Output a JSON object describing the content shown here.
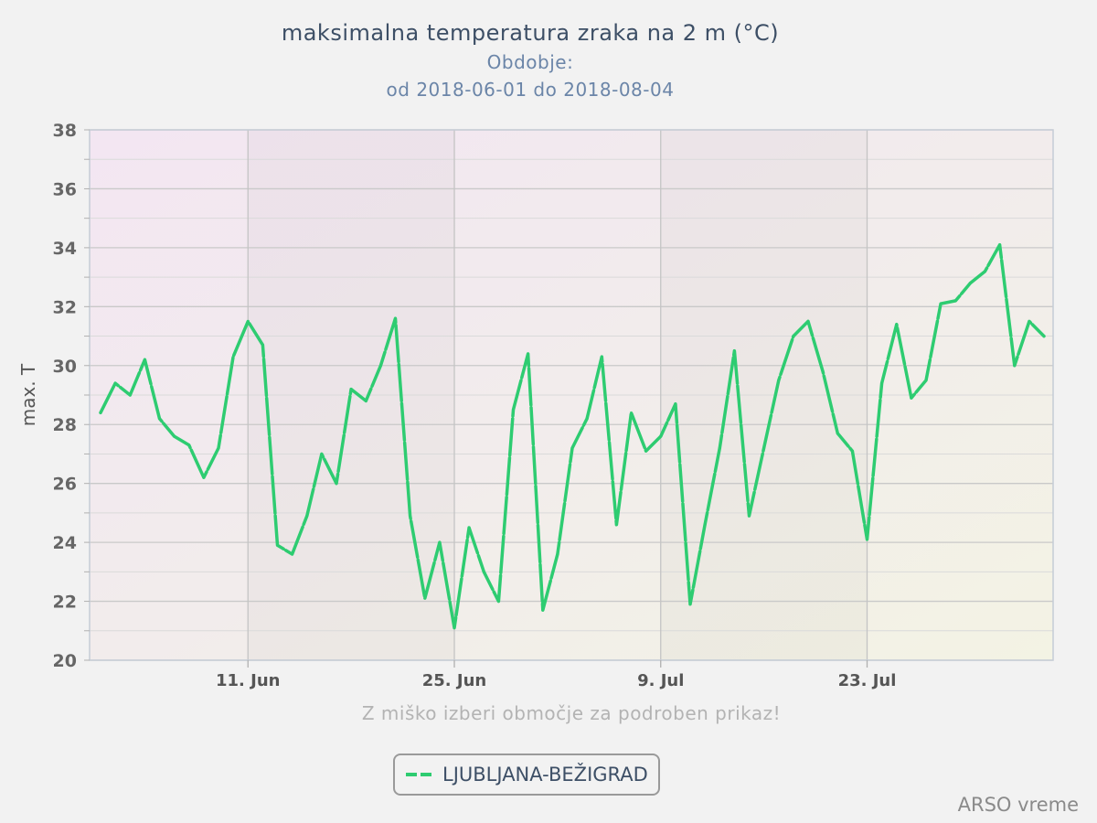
{
  "header": {
    "title": "maksimalna temperatura zraka na 2 m (°C)",
    "period_label": "Obdobje:",
    "period_range": "od 2018-06-01 do 2018-08-04"
  },
  "hint": "Z miško izberi območje za podroben prikaz!",
  "legend": {
    "label": "LJUBLJANA-BEŽIGRAD"
  },
  "credit": "ARSO vreme",
  "colors": {
    "series": "#2ecc71",
    "title": "#3d4f66",
    "subtitle": "#6b85a8"
  },
  "chart_data": {
    "type": "line",
    "title": "maksimalna temperatura zraka na 2 m (°C)",
    "ylabel": "max. T",
    "xlabel": "",
    "ylim": [
      20,
      38
    ],
    "yticks": [
      20,
      22,
      24,
      26,
      28,
      30,
      32,
      34,
      36,
      38
    ],
    "xlim": [
      "2018-06-01",
      "2018-08-04"
    ],
    "xticks": [
      {
        "date": "2018-06-11",
        "label": "11. Jun"
      },
      {
        "date": "2018-06-25",
        "label": "25. Jun"
      },
      {
        "date": "2018-07-09",
        "label": "9. Jul"
      },
      {
        "date": "2018-07-23",
        "label": "23. Jul"
      }
    ],
    "grid": true,
    "legend_position": "bottom",
    "series": [
      {
        "name": "LJUBLJANA-BEŽIGRAD",
        "color": "#2ecc71",
        "dashed": true,
        "points": [
          [
            "2018-06-01",
            28.4
          ],
          [
            "2018-06-02",
            29.4
          ],
          [
            "2018-06-03",
            29.0
          ],
          [
            "2018-06-04",
            30.2
          ],
          [
            "2018-06-05",
            28.2
          ],
          [
            "2018-06-06",
            27.6
          ],
          [
            "2018-06-07",
            27.3
          ],
          [
            "2018-06-08",
            26.2
          ],
          [
            "2018-06-09",
            27.2
          ],
          [
            "2018-06-10",
            30.3
          ],
          [
            "2018-06-11",
            31.5
          ],
          [
            "2018-06-12",
            30.7
          ],
          [
            "2018-06-13",
            23.9
          ],
          [
            "2018-06-14",
            23.6
          ],
          [
            "2018-06-15",
            24.9
          ],
          [
            "2018-06-16",
            27.0
          ],
          [
            "2018-06-17",
            26.0
          ],
          [
            "2018-06-18",
            29.2
          ],
          [
            "2018-06-19",
            28.8
          ],
          [
            "2018-06-20",
            30.0
          ],
          [
            "2018-06-21",
            31.6
          ],
          [
            "2018-06-22",
            24.9
          ],
          [
            "2018-06-23",
            22.1
          ],
          [
            "2018-06-24",
            24.0
          ],
          [
            "2018-06-25",
            21.1
          ],
          [
            "2018-06-26",
            24.5
          ],
          [
            "2018-06-27",
            23.0
          ],
          [
            "2018-06-28",
            22.0
          ],
          [
            "2018-06-29",
            28.5
          ],
          [
            "2018-06-30",
            30.4
          ],
          [
            "2018-07-01",
            21.7
          ],
          [
            "2018-07-02",
            23.6
          ],
          [
            "2018-07-03",
            27.2
          ],
          [
            "2018-07-04",
            28.2
          ],
          [
            "2018-07-05",
            30.3
          ],
          [
            "2018-07-06",
            24.6
          ],
          [
            "2018-07-07",
            28.4
          ],
          [
            "2018-07-08",
            27.1
          ],
          [
            "2018-07-09",
            27.6
          ],
          [
            "2018-07-10",
            28.7
          ],
          [
            "2018-07-11",
            21.9
          ],
          [
            "2018-07-12",
            24.6
          ],
          [
            "2018-07-13",
            27.2
          ],
          [
            "2018-07-14",
            30.5
          ],
          [
            "2018-07-15",
            24.9
          ],
          [
            "2018-07-16",
            27.2
          ],
          [
            "2018-07-17",
            29.5
          ],
          [
            "2018-07-18",
            31.0
          ],
          [
            "2018-07-19",
            31.5
          ],
          [
            "2018-07-20",
            29.8
          ],
          [
            "2018-07-21",
            27.7
          ],
          [
            "2018-07-22",
            27.1
          ],
          [
            "2018-07-23",
            24.1
          ],
          [
            "2018-07-24",
            29.4
          ],
          [
            "2018-07-25",
            31.4
          ],
          [
            "2018-07-26",
            28.9
          ],
          [
            "2018-07-27",
            29.5
          ],
          [
            "2018-07-28",
            32.1
          ],
          [
            "2018-07-29",
            32.2
          ],
          [
            "2018-07-30",
            32.8
          ],
          [
            "2018-07-31",
            33.2
          ],
          [
            "2018-08-01",
            34.1
          ],
          [
            "2018-08-02",
            30.0
          ],
          [
            "2018-08-03",
            31.5
          ],
          [
            "2018-08-04",
            31.0
          ]
        ]
      }
    ]
  }
}
